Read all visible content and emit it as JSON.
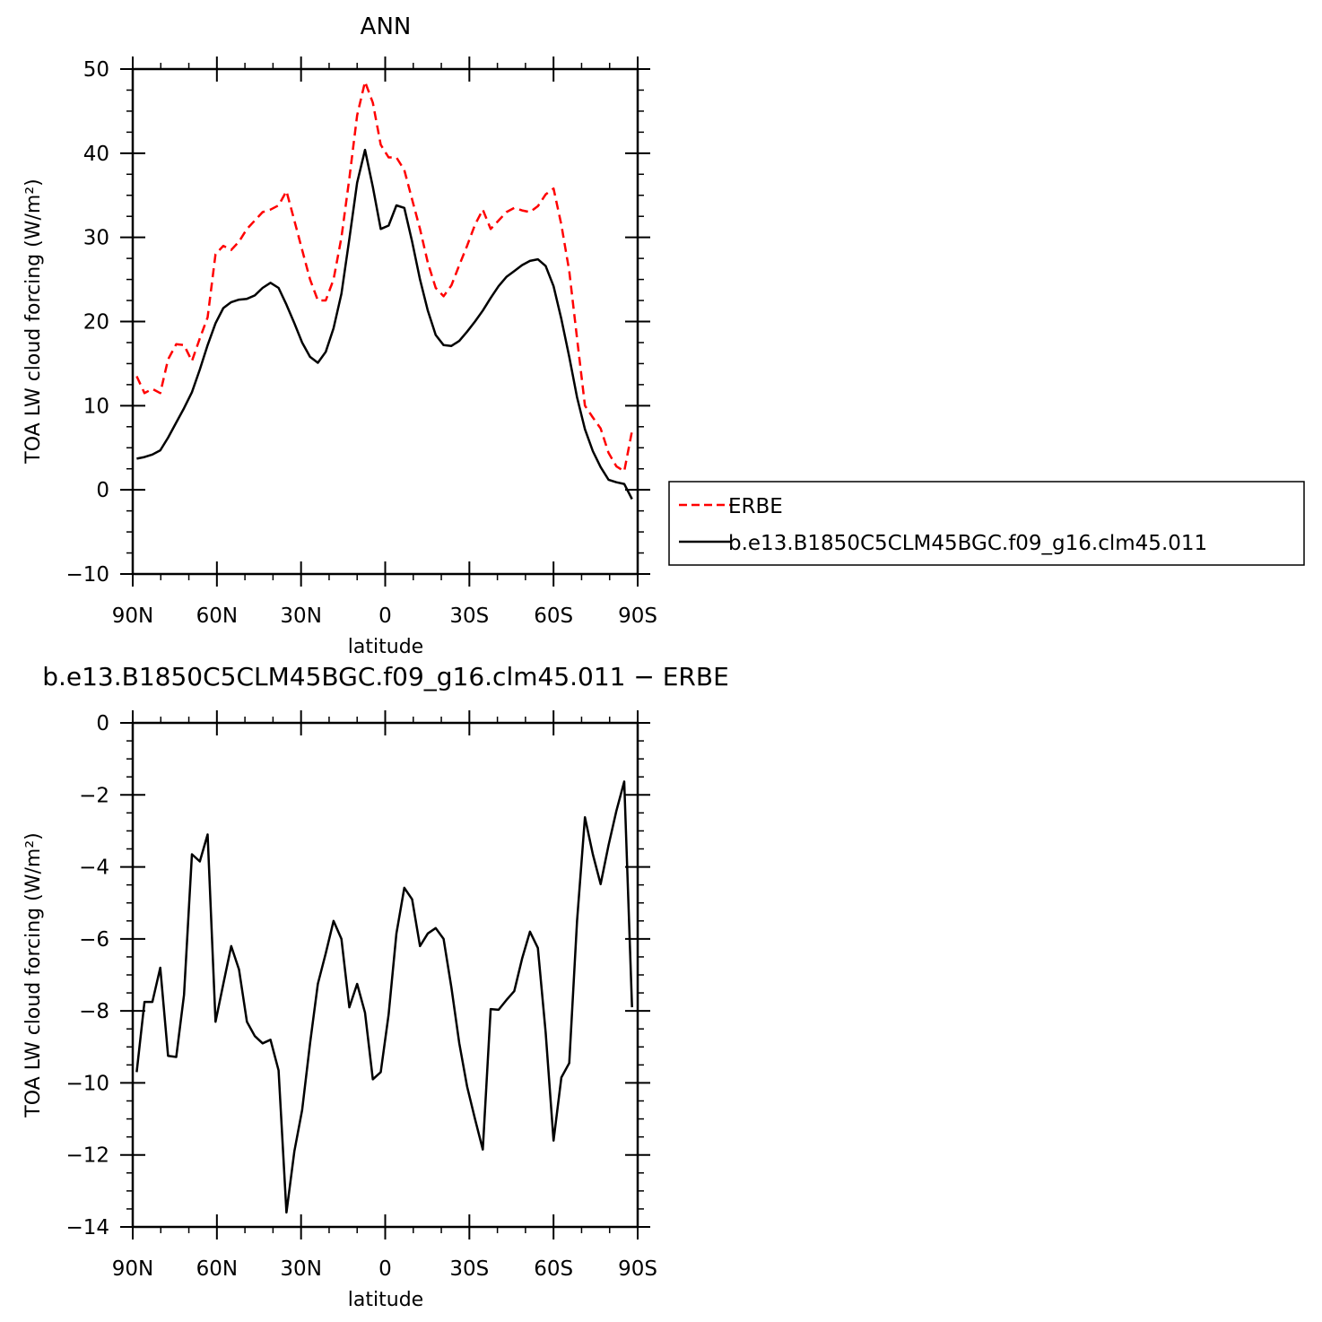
{
  "chart_data": [
    {
      "type": "line",
      "title": "ANN",
      "xlabel": "latitude",
      "ylabel": "TOA LW cloud forcing (W/m²)",
      "xlim": [
        90,
        -90
      ],
      "ylim": [
        -10,
        50
      ],
      "x_ticks": [
        90,
        60,
        30,
        0,
        -30,
        -60,
        -90
      ],
      "x_tick_labels": [
        "90N",
        "60N",
        "30N",
        "0",
        "30S",
        "60S",
        "90S"
      ],
      "y_ticks": [
        -10,
        0,
        10,
        20,
        30,
        40,
        50
      ],
      "y_tick_labels": [
        "−10",
        "0",
        "10",
        "20",
        "30",
        "40",
        "50"
      ],
      "legend": "right",
      "series": [
        {
          "name": "ERBE",
          "color": "#ff0000",
          "style": "dashed",
          "x": [
            88.6,
            85.8,
            83.0,
            80.2,
            77.4,
            74.5,
            71.7,
            68.9,
            66.1,
            63.3,
            60.5,
            57.7,
            54.9,
            52.1,
            49.3,
            46.5,
            43.7,
            40.9,
            38.0,
            35.2,
            32.4,
            29.6,
            26.8,
            24.0,
            21.2,
            18.4,
            15.6,
            12.8,
            10.0,
            7.2,
            4.4,
            1.6,
            -1.2,
            -4.0,
            -6.8,
            -9.6,
            -12.4,
            -15.2,
            -18.0,
            -20.8,
            -23.6,
            -26.4,
            -29.2,
            -32.0,
            -34.8,
            -37.6,
            -40.4,
            -43.2,
            -46.0,
            -48.8,
            -51.6,
            -54.4,
            -57.2,
            -60.0,
            -62.8,
            -65.6,
            -68.4,
            -71.2,
            -74.0,
            -76.8,
            -79.6,
            -82.4,
            -85.2,
            -88.0
          ],
          "y": [
            13.5,
            11.5,
            12.0,
            11.5,
            15.5,
            17.3,
            17.2,
            15.3,
            18.0,
            20.5,
            28.0,
            29.0,
            28.5,
            29.5,
            31.0,
            32.0,
            33.0,
            33.3,
            33.8,
            35.5,
            32.0,
            28.5,
            25.0,
            22.5,
            22.5,
            25.0,
            30.0,
            37.0,
            44.5,
            48.5,
            46.0,
            41.0,
            39.5,
            39.5,
            38.0,
            34.5,
            31.0,
            27.0,
            24.0,
            23.0,
            24.3,
            26.7,
            29.0,
            31.5,
            33.3,
            31.0,
            32.0,
            33.0,
            33.5,
            33.2,
            33.0,
            33.7,
            35.1,
            35.8,
            31.5,
            26.0,
            18.0,
            10.0,
            8.6,
            7.3,
            4.4,
            2.8,
            2.2,
            7.0
          ]
        },
        {
          "name": "b.e13.B1850C5CLM45BGC.f09_g16.clm45.011",
          "color": "#000000",
          "style": "solid",
          "x": [
            88.6,
            85.8,
            83.0,
            80.2,
            77.4,
            74.5,
            71.7,
            68.9,
            66.1,
            63.3,
            60.5,
            57.7,
            54.9,
            52.1,
            49.3,
            46.5,
            43.7,
            40.9,
            38.0,
            35.2,
            32.4,
            29.6,
            26.8,
            24.0,
            21.2,
            18.4,
            15.6,
            12.8,
            10.0,
            7.2,
            4.4,
            1.6,
            -1.2,
            -4.0,
            -6.8,
            -9.6,
            -12.4,
            -15.2,
            -18.0,
            -20.8,
            -23.6,
            -26.4,
            -29.2,
            -32.0,
            -34.8,
            -37.6,
            -40.4,
            -43.2,
            -46.0,
            -48.8,
            -51.6,
            -54.4,
            -57.2,
            -60.0,
            -62.8,
            -65.6,
            -68.4,
            -71.2,
            -74.0,
            -76.8,
            -79.6,
            -82.4,
            -85.2,
            -88.0
          ],
          "y": [
            3.7,
            3.9,
            4.2,
            4.7,
            6.2,
            8.0,
            9.7,
            11.6,
            14.3,
            17.2,
            19.8,
            21.6,
            22.3,
            22.6,
            22.7,
            23.1,
            24.0,
            24.6,
            24.0,
            22.0,
            19.8,
            17.5,
            15.8,
            15.1,
            16.4,
            19.2,
            23.3,
            29.8,
            36.5,
            40.4,
            36.0,
            31.0,
            31.4,
            33.8,
            33.5,
            29.5,
            25.0,
            21.3,
            18.4,
            17.2,
            17.1,
            17.7,
            18.8,
            20.0,
            21.3,
            22.8,
            24.2,
            25.3,
            26.0,
            26.7,
            27.2,
            27.4,
            26.6,
            24.2,
            20.3,
            15.8,
            11.0,
            7.2,
            4.6,
            2.7,
            1.2,
            0.9,
            0.7,
            -1.1
          ]
        }
      ]
    },
    {
      "type": "line",
      "title": "b.e13.B1850C5CLM45BGC.f09_g16.clm45.011 − ERBE",
      "xlabel": "latitude",
      "ylabel": "TOA LW cloud forcing (W/m²)",
      "xlim": [
        90,
        -90
      ],
      "ylim": [
        -14,
        0
      ],
      "x_ticks": [
        90,
        60,
        30,
        0,
        -30,
        -60,
        -90
      ],
      "x_tick_labels": [
        "90N",
        "60N",
        "30N",
        "0",
        "30S",
        "60S",
        "90S"
      ],
      "y_ticks": [
        -14,
        -12,
        -10,
        -8,
        -6,
        -4,
        -2,
        0
      ],
      "y_tick_labels": [
        "−14",
        "−12",
        "−10",
        "−8",
        "−6",
        "−4",
        "−2",
        "0"
      ],
      "series": [
        {
          "color": "#000000",
          "style": "solid",
          "x": [
            88.6,
            85.8,
            83.0,
            80.2,
            77.4,
            74.5,
            71.7,
            68.9,
            66.1,
            63.3,
            60.5,
            57.7,
            54.9,
            52.1,
            49.3,
            46.5,
            43.7,
            40.9,
            38.0,
            35.2,
            32.4,
            29.6,
            26.8,
            24.0,
            21.2,
            18.4,
            15.6,
            12.8,
            10.0,
            7.2,
            4.4,
            1.6,
            -1.2,
            -4.0,
            -6.8,
            -9.6,
            -12.4,
            -15.2,
            -18.0,
            -20.8,
            -23.6,
            -26.4,
            -29.2,
            -32.0,
            -34.8,
            -37.6,
            -40.4,
            -43.2,
            -46.0,
            -48.8,
            -51.6,
            -54.4,
            -57.2,
            -60.0,
            -62.8,
            -65.6,
            -68.4,
            -71.2,
            -74.0,
            -76.8,
            -79.6,
            -82.4,
            -85.2,
            -88.0
          ],
          "y": [
            -9.7,
            -7.75,
            -7.75,
            -6.8,
            -9.25,
            -9.28,
            -7.55,
            -3.65,
            -3.85,
            -3.1,
            -8.3,
            -7.25,
            -6.2,
            -6.85,
            -8.3,
            -8.7,
            -8.9,
            -8.8,
            -9.65,
            -13.6,
            -11.9,
            -10.75,
            -8.9,
            -7.25,
            -6.4,
            -5.5,
            -6.0,
            -7.9,
            -7.25,
            -8.05,
            -9.9,
            -9.7,
            -8.1,
            -5.85,
            -4.58,
            -4.9,
            -6.2,
            -5.85,
            -5.7,
            -6.0,
            -7.35,
            -8.9,
            -10.1,
            -11.0,
            -11.85,
            -7.95,
            -7.97,
            -7.7,
            -7.45,
            -6.55,
            -5.8,
            -6.25,
            -8.6,
            -11.6,
            -9.85,
            -9.45,
            -5.5,
            -2.62,
            -3.65,
            -4.48,
            -3.4,
            -2.45,
            -1.63,
            -7.9
          ]
        }
      ]
    }
  ]
}
